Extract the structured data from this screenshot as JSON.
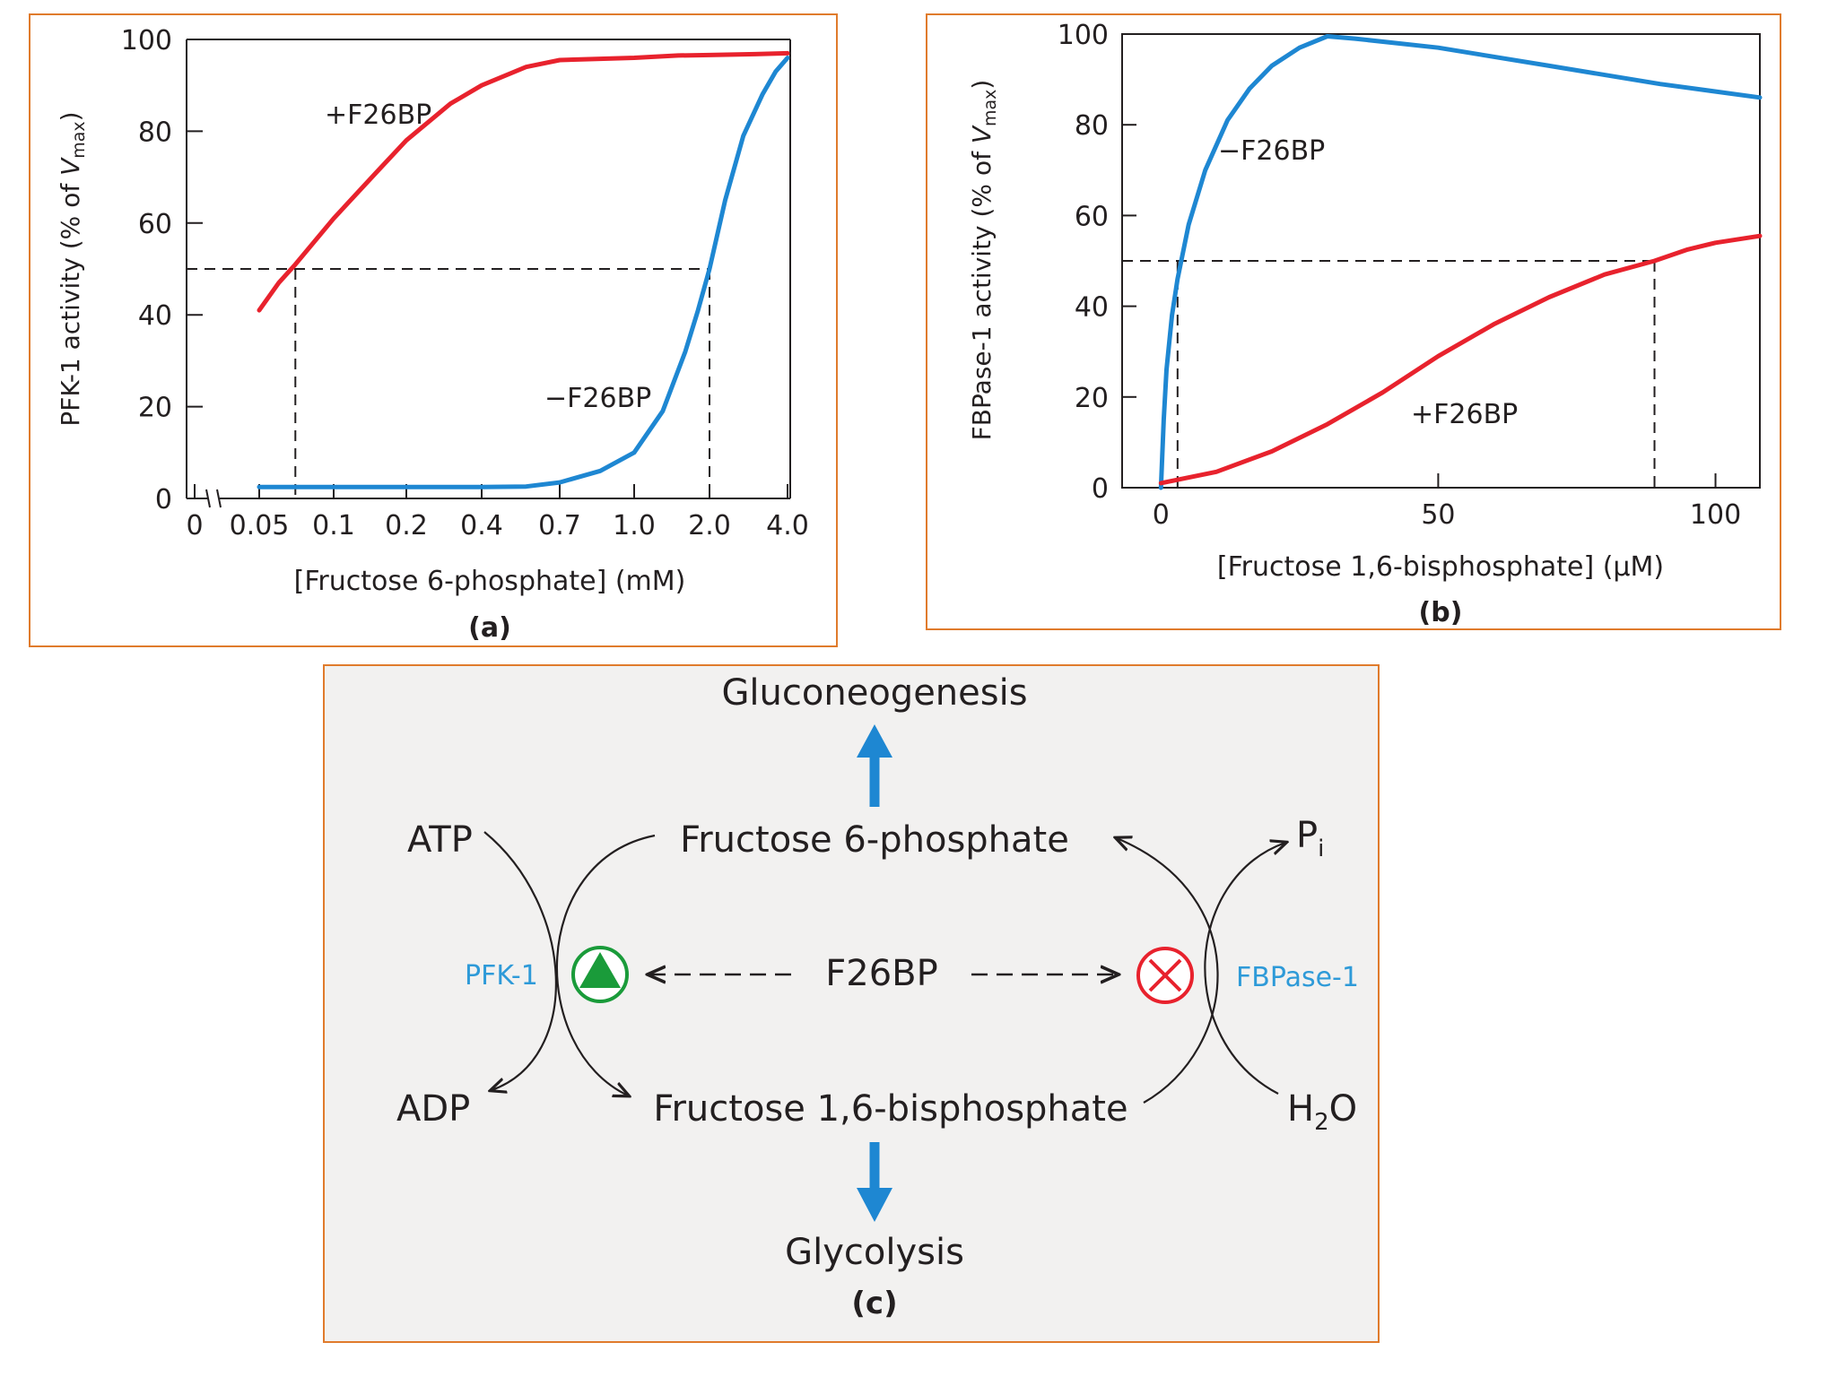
{
  "chart_data": [
    {
      "type": "line",
      "panel_label": "(a)",
      "xlabel": "[Fructose 6-phosphate] (mM)",
      "ylabel_prefix": "PFK-1 activity (% of ",
      "ylabel_v": "V",
      "ylabel_sub": "max",
      "ylabel_suffix": ")",
      "xscale": "log-like categorical (axis break after 0)",
      "x_ticks": [
        "0",
        "0.05",
        "0.1",
        "0.2",
        "0.4",
        "0.7",
        "1.0",
        "2.0",
        "4.0"
      ],
      "y_ticks": [
        "0",
        "20",
        "40",
        "60",
        "80",
        "100"
      ],
      "ylim": [
        0,
        100
      ],
      "series": [
        {
          "name": "+F26BP",
          "label": "+F26BP",
          "color": "#e8222d",
          "points": [
            [
              0.05,
              41
            ],
            [
              0.06,
              47
            ],
            [
              0.07,
              51
            ],
            [
              0.1,
              61
            ],
            [
              0.15,
              71
            ],
            [
              0.2,
              78
            ],
            [
              0.3,
              86
            ],
            [
              0.4,
              90
            ],
            [
              0.55,
              94
            ],
            [
              0.7,
              95.5
            ],
            [
              1.0,
              96
            ],
            [
              1.5,
              96.5
            ],
            [
              2.0,
              96.6
            ],
            [
              3.0,
              96.8
            ],
            [
              4.0,
              97
            ]
          ]
        },
        {
          "name": "-F26BP",
          "label": "−F26BP",
          "color": "#1e87d2",
          "points": [
            [
              0.05,
              2.5
            ],
            [
              0.2,
              2.5
            ],
            [
              0.4,
              2.5
            ],
            [
              0.55,
              2.6
            ],
            [
              0.7,
              3.5
            ],
            [
              0.85,
              6
            ],
            [
              1.0,
              10
            ],
            [
              1.3,
              19
            ],
            [
              1.6,
              32
            ],
            [
              1.8,
              41
            ],
            [
              2.0,
              50
            ],
            [
              2.3,
              65
            ],
            [
              2.7,
              79
            ],
            [
              3.2,
              88
            ],
            [
              3.6,
              93
            ],
            [
              4.0,
              96
            ]
          ]
        }
      ],
      "reference": {
        "y": 50,
        "x_plus": 0.07,
        "x_minus": 2.0
      }
    },
    {
      "type": "line",
      "panel_label": "(b)",
      "xlabel": "[Fructose 1,6-bisphosphate] (μM)",
      "ylabel_prefix": "FBPase-1 activity (% of ",
      "ylabel_v": "V",
      "ylabel_sub": "max",
      "ylabel_suffix": ")",
      "x_ticks": [
        "0",
        "50",
        "100"
      ],
      "y_ticks": [
        "0",
        "20",
        "40",
        "60",
        "80",
        "100"
      ],
      "xlim": [
        -7,
        108
      ],
      "ylim": [
        0,
        100
      ],
      "series": [
        {
          "name": "-F26BP",
          "label": "−F26BP",
          "color": "#1e87d2",
          "points": [
            [
              0,
              0
            ],
            [
              0.5,
              15
            ],
            [
              1,
              26
            ],
            [
              2,
              38
            ],
            [
              3,
              46
            ],
            [
              5,
              58
            ],
            [
              8,
              70
            ],
            [
              12,
              81
            ],
            [
              16,
              88
            ],
            [
              20,
              93
            ],
            [
              25,
              97
            ],
            [
              30,
              99.5
            ],
            [
              35,
              99
            ],
            [
              50,
              97
            ],
            [
              70,
              93
            ],
            [
              90,
              89
            ],
            [
              108,
              86
            ]
          ]
        },
        {
          "name": "+F26BP",
          "label": "+F26BP",
          "color": "#e8222d",
          "points": [
            [
              0,
              1
            ],
            [
              10,
              3.5
            ],
            [
              20,
              8
            ],
            [
              30,
              14
            ],
            [
              40,
              21
            ],
            [
              50,
              29
            ],
            [
              60,
              36
            ],
            [
              70,
              42
            ],
            [
              80,
              47
            ],
            [
              89,
              50
            ],
            [
              95,
              52.5
            ],
            [
              100,
              54
            ],
            [
              108,
              55.5
            ]
          ]
        }
      ],
      "reference": {
        "y": 50,
        "x_minus": 3,
        "x_plus": 89
      }
    }
  ],
  "diagram": {
    "panel_label": "(c)",
    "gluconeogenesis": "Gluconeogenesis",
    "glycolysis": "Glycolysis",
    "f6p": "Fructose 6-phosphate",
    "f16bp": "Fructose 1,6-bisphosphate",
    "f26bp": "F26BP",
    "atp": "ATP",
    "adp": "ADP",
    "pi_main": "P",
    "pi_sub": "i",
    "h2o_h": "H",
    "h2o_sub": "2",
    "h2o_o": "O",
    "pfk": "PFK-1",
    "fbpase": "FBPase-1",
    "activator_icon": "activation-triangle-icon",
    "inhibitor_icon": "inhibition-cross-icon"
  },
  "colors": {
    "frame": "#e07b2c",
    "diagram_bg": "#f2f1f0",
    "red": "#e8222d",
    "blue": "#1e87d2",
    "green": "#1a9b3a",
    "enzyme_label": "#2e9ad8"
  }
}
